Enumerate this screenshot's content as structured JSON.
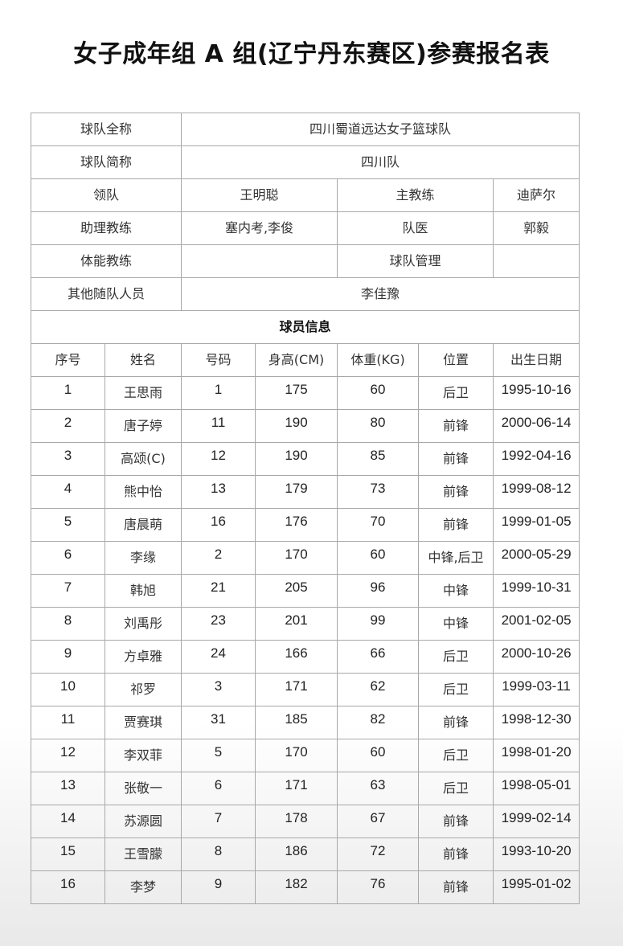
{
  "title": "女子成年组  A  组(辽宁丹东赛区)参赛报名表",
  "team_info": {
    "full_name_label": "球队全称",
    "full_name": "四川蜀道远达女子篮球队",
    "short_name_label": "球队简称",
    "short_name": "四川队",
    "leader_label": "领队",
    "leader": "王明聪",
    "head_coach_label": "主教练",
    "head_coach": "迪萨尔",
    "assistant_coach_label": "助理教练",
    "assistant_coach": "塞内考,李俊",
    "doctor_label": "队医",
    "doctor": "郭毅",
    "fitness_coach_label": "体能教练",
    "fitness_coach": "",
    "manager_label": "球队管理",
    "manager": "",
    "other_staff_label": "其他随队人员",
    "other_staff": "李佳豫"
  },
  "players_section_label": "球员信息",
  "columns": [
    "序号",
    "姓名",
    "号码",
    "身高(CM)",
    "体重(KG)",
    "位置",
    "出生日期"
  ],
  "players": [
    [
      "1",
      "王思雨",
      "1",
      "175",
      "60",
      "后卫",
      "1995-10-16"
    ],
    [
      "2",
      "唐子婷",
      "11",
      "190",
      "80",
      "前锋",
      "2000-06-14"
    ],
    [
      "3",
      "高颂(C)",
      "12",
      "190",
      "85",
      "前锋",
      "1992-04-16"
    ],
    [
      "4",
      "熊中怡",
      "13",
      "179",
      "73",
      "前锋",
      "1999-08-12"
    ],
    [
      "5",
      "唐晨萌",
      "16",
      "176",
      "70",
      "前锋",
      "1999-01-05"
    ],
    [
      "6",
      "李缘",
      "2",
      "170",
      "60",
      "中锋,后卫",
      "2000-05-29"
    ],
    [
      "7",
      "韩旭",
      "21",
      "205",
      "96",
      "中锋",
      "1999-10-31"
    ],
    [
      "8",
      "刘禹彤",
      "23",
      "201",
      "99",
      "中锋",
      "2001-02-05"
    ],
    [
      "9",
      "方卓雅",
      "24",
      "166",
      "66",
      "后卫",
      "2000-10-26"
    ],
    [
      "10",
      "祁罗",
      "3",
      "171",
      "62",
      "后卫",
      "1999-03-11"
    ],
    [
      "11",
      "贾赛琪",
      "31",
      "185",
      "82",
      "前锋",
      "1998-12-30"
    ],
    [
      "12",
      "李双菲",
      "5",
      "170",
      "60",
      "后卫",
      "1998-01-20"
    ],
    [
      "13",
      "张敬一",
      "6",
      "171",
      "63",
      "后卫",
      "1998-05-01"
    ],
    [
      "14",
      "苏源圆",
      "7",
      "178",
      "67",
      "前锋",
      "1999-02-14"
    ],
    [
      "15",
      "王雪朦",
      "8",
      "186",
      "72",
      "前锋",
      "1993-10-20"
    ],
    [
      "16",
      "李梦",
      "9",
      "182",
      "76",
      "前锋",
      "1995-01-02"
    ]
  ]
}
